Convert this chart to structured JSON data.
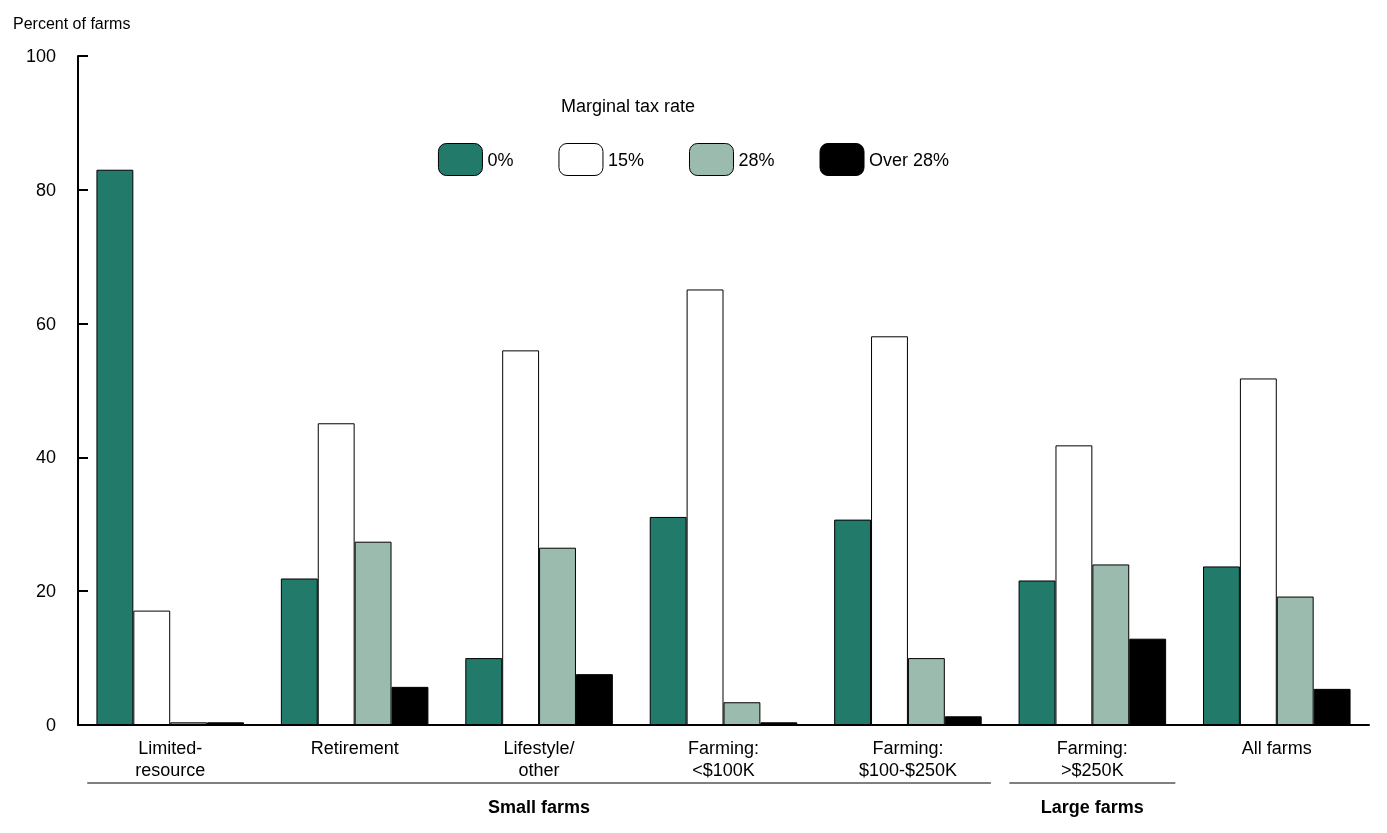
{
  "chart_data": {
    "type": "bar",
    "ylabel": "Percent of farms",
    "legend_title": "Marginal tax rate",
    "legend": "top",
    "grid": false,
    "categories": [
      "Limited-\nresource",
      "Retirement",
      "Lifestyle/\nother",
      "Farming:\n<$100K",
      "Farming:\n$100-$250K",
      "Farming:\n>$250K",
      "All farms"
    ],
    "series": [
      {
        "name": "0%",
        "color": "#217a6a",
        "values": [
          83,
          21.9,
          10,
          31.1,
          30.7,
          21.6,
          23.7
        ]
      },
      {
        "name": "15%",
        "color": "#ffffff",
        "values": [
          17.1,
          45.1,
          56,
          65.1,
          58.1,
          41.8,
          51.8
        ]
      },
      {
        "name": "28%",
        "color": "#9bbbae",
        "values": [
          0.4,
          27.4,
          26.5,
          3.4,
          10,
          24,
          19.2
        ]
      },
      {
        "name": "Over 28%",
        "color": "#000000",
        "values": [
          0.4,
          5.7,
          7.6,
          0.4,
          1.3,
          12.9,
          5.4
        ]
      }
    ],
    "ylim": [
      0,
      100
    ],
    "yticks": [
      0,
      20,
      40,
      60,
      80,
      100
    ],
    "annotations": [
      "Small farms",
      "Large farms"
    ]
  }
}
